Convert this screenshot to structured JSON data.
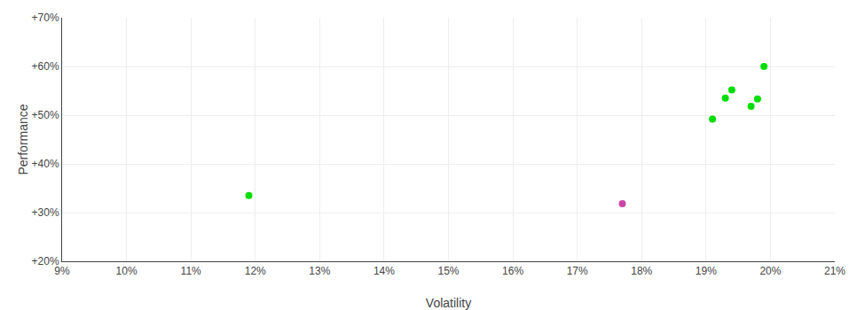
{
  "chart_data": {
    "type": "scatter",
    "xlabel": "Volatility",
    "ylabel": "Performance",
    "series": [
      {
        "color": "#00dd00",
        "x": [
          0.119,
          0.199,
          0.194,
          0.193,
          0.198,
          0.197,
          0.191
        ],
        "values": [
          0.335,
          0.6,
          0.552,
          0.535,
          0.533,
          0.518,
          0.492
        ]
      },
      {
        "color": "#cc44aa",
        "x": [
          0.177
        ],
        "values": [
          0.318
        ]
      }
    ],
    "xlim": [
      0.09,
      0.21
    ],
    "ylim": [
      0.2,
      0.7
    ],
    "xticks": [
      {
        "value": 0.09,
        "label": "9%"
      },
      {
        "value": 0.1,
        "label": "10%"
      },
      {
        "value": 0.11,
        "label": "11%"
      },
      {
        "value": 0.12,
        "label": "12%"
      },
      {
        "value": 0.13,
        "label": "13%"
      },
      {
        "value": 0.14,
        "label": "14%"
      },
      {
        "value": 0.15,
        "label": "15%"
      },
      {
        "value": 0.16,
        "label": "16%"
      },
      {
        "value": 0.17,
        "label": "17%"
      },
      {
        "value": 0.18,
        "label": "18%"
      },
      {
        "value": 0.19,
        "label": "19%"
      },
      {
        "value": 0.2,
        "label": "20%"
      },
      {
        "value": 0.21,
        "label": "21%"
      }
    ],
    "yticks": [
      {
        "value": 0.2,
        "label": "+20%"
      },
      {
        "value": 0.3,
        "label": "+30%"
      },
      {
        "value": 0.4,
        "label": "+40%"
      },
      {
        "value": 0.5,
        "label": "+50%"
      },
      {
        "value": 0.6,
        "label": "+60%"
      },
      {
        "value": 0.7,
        "label": "+70%"
      }
    ],
    "grid": true
  }
}
